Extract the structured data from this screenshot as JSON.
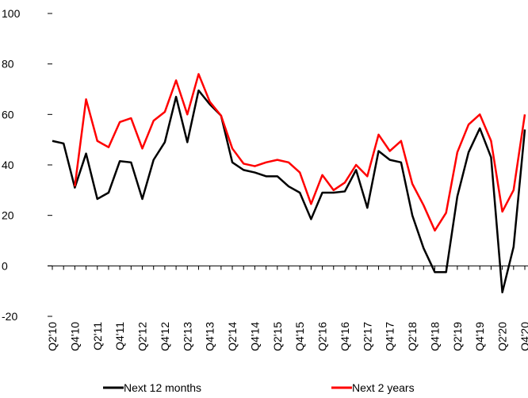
{
  "chart_data": {
    "type": "line",
    "categories": [
      "Q2'10",
      null,
      "Q4'10",
      null,
      "Q2'11",
      null,
      "Q4'11",
      null,
      "Q2'12",
      null,
      "Q4'12",
      null,
      "Q2'13",
      null,
      "Q4'13",
      null,
      "Q2'14",
      null,
      "Q4'14",
      null,
      "Q2'15",
      null,
      "Q4'15",
      null,
      "Q2'16",
      null,
      "Q4'16",
      null,
      "Q2'17",
      null,
      "Q4'17",
      null,
      "Q2'18",
      null,
      "Q4'18",
      null,
      "Q2'19",
      null,
      "Q4'19",
      null,
      "Q2'20",
      null,
      "Q4'20"
    ],
    "series": [
      {
        "name": "Next 12 months",
        "color": "#000000",
        "values": [
          49.5,
          48.5,
          31,
          44.5,
          26.5,
          29,
          41.5,
          41,
          26.5,
          42,
          49,
          67,
          49,
          69.5,
          64,
          59.5,
          41,
          38,
          37,
          35.5,
          35.5,
          31.5,
          29,
          18.5,
          29,
          29,
          29.5,
          38,
          23,
          45.5,
          42,
          41,
          20,
          7,
          -2.5,
          -2.5,
          27.5,
          45,
          54.5,
          43,
          -10.5,
          7.5,
          54
        ]
      },
      {
        "name": "Next 2 years",
        "color": "#ff0000",
        "values": [
          null,
          null,
          31.5,
          66,
          49.5,
          47,
          57,
          58.5,
          46.5,
          57.5,
          61,
          73.5,
          60,
          76,
          65,
          59.5,
          46.5,
          40.5,
          39.5,
          41,
          42,
          41,
          37,
          24.5,
          36,
          30,
          33,
          40,
          35.5,
          52,
          45.5,
          49.5,
          32.5,
          24,
          14,
          21,
          45,
          56,
          60,
          49.5,
          21.5,
          30,
          60
        ]
      }
    ],
    "ylim": [
      -20,
      100
    ],
    "yticks": [
      -20,
      0,
      20,
      40,
      60,
      80,
      100
    ],
    "legend": "bottom"
  }
}
